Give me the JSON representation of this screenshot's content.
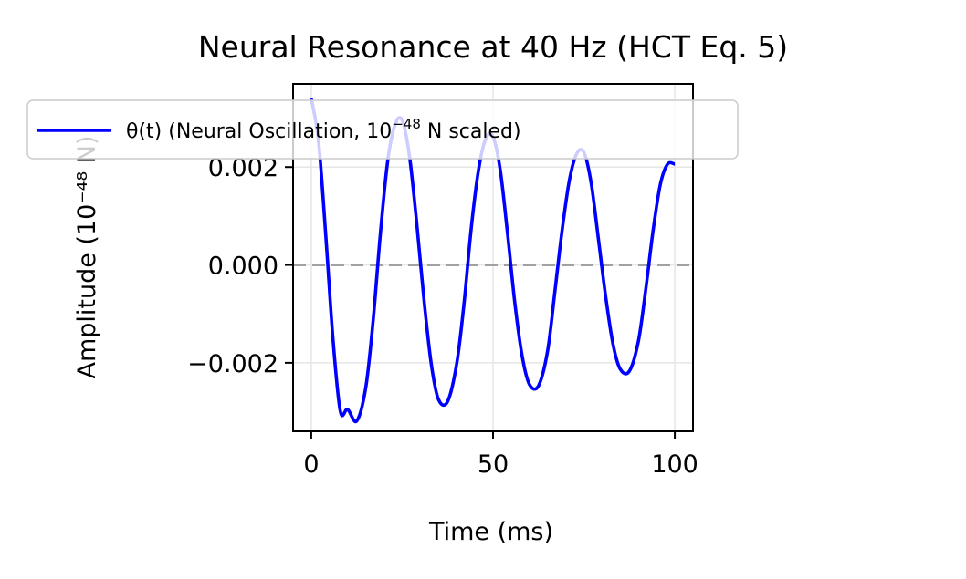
{
  "chart_data": {
    "type": "line",
    "title": "Neural Resonance at 40 Hz (HCT Eq. 5)",
    "xlabel": "Time (ms)",
    "ylabel": "Amplitude (10⁻⁴⁸ N)",
    "xlim": [
      -5,
      105
    ],
    "ylim": [
      -0.0034,
      0.0037
    ],
    "x_ticks": [
      0,
      50,
      100
    ],
    "x_tick_labels": [
      "0",
      "50",
      "100"
    ],
    "y_ticks": [
      -0.002,
      0.0,
      0.002
    ],
    "y_tick_labels": [
      "−0.002",
      "0.000",
      "0.002"
    ],
    "grid": true,
    "legend_placement": "upper-left (overlapping title area)",
    "reference_line": {
      "y": 0.0,
      "style": "dashed",
      "color": "#999999"
    },
    "series": [
      {
        "name": "θ(t) (Neural Oscillation, 10⁻⁴⁸ N scaled)",
        "legend_main": "θ(t) (Neural Oscillation, 10",
        "legend_exp": "−48",
        "legend_tail": " N scaled)",
        "color": "#0000ff",
        "x": [
          0,
          2,
          4,
          6,
          8,
          10,
          12.5,
          15,
          17,
          19,
          21,
          23,
          25,
          27,
          29,
          31,
          33,
          35,
          37.5,
          40,
          42,
          44,
          46,
          48,
          50,
          52,
          54,
          56,
          58,
          60,
          62.5,
          65,
          67,
          69,
          71,
          73,
          75,
          77,
          79,
          81,
          83,
          85,
          87.5,
          90,
          92,
          94,
          96,
          98,
          100
        ],
        "y": [
          0.0034,
          0.00253,
          0.00059,
          -0.00154,
          -0.00299,
          -0.00295,
          -0.00319,
          -0.0025,
          -0.00115,
          0.00063,
          0.00211,
          0.00286,
          0.00296,
          0.00223,
          0.00086,
          -0.00071,
          -0.00202,
          -0.00275,
          -0.00279,
          -0.00202,
          -0.0008,
          0.00075,
          0.00194,
          0.00258,
          0.00262,
          0.00193,
          0.00063,
          -0.00078,
          -0.00186,
          -0.00244,
          -0.00247,
          -0.00176,
          -0.00055,
          0.00071,
          0.00173,
          0.00227,
          0.0023,
          0.00167,
          0.00052,
          -0.00066,
          -0.00162,
          -0.00213,
          -0.00217,
          -0.00155,
          -0.0005,
          0.00069,
          0.00164,
          0.00206,
          0.00206
        ]
      }
    ]
  }
}
